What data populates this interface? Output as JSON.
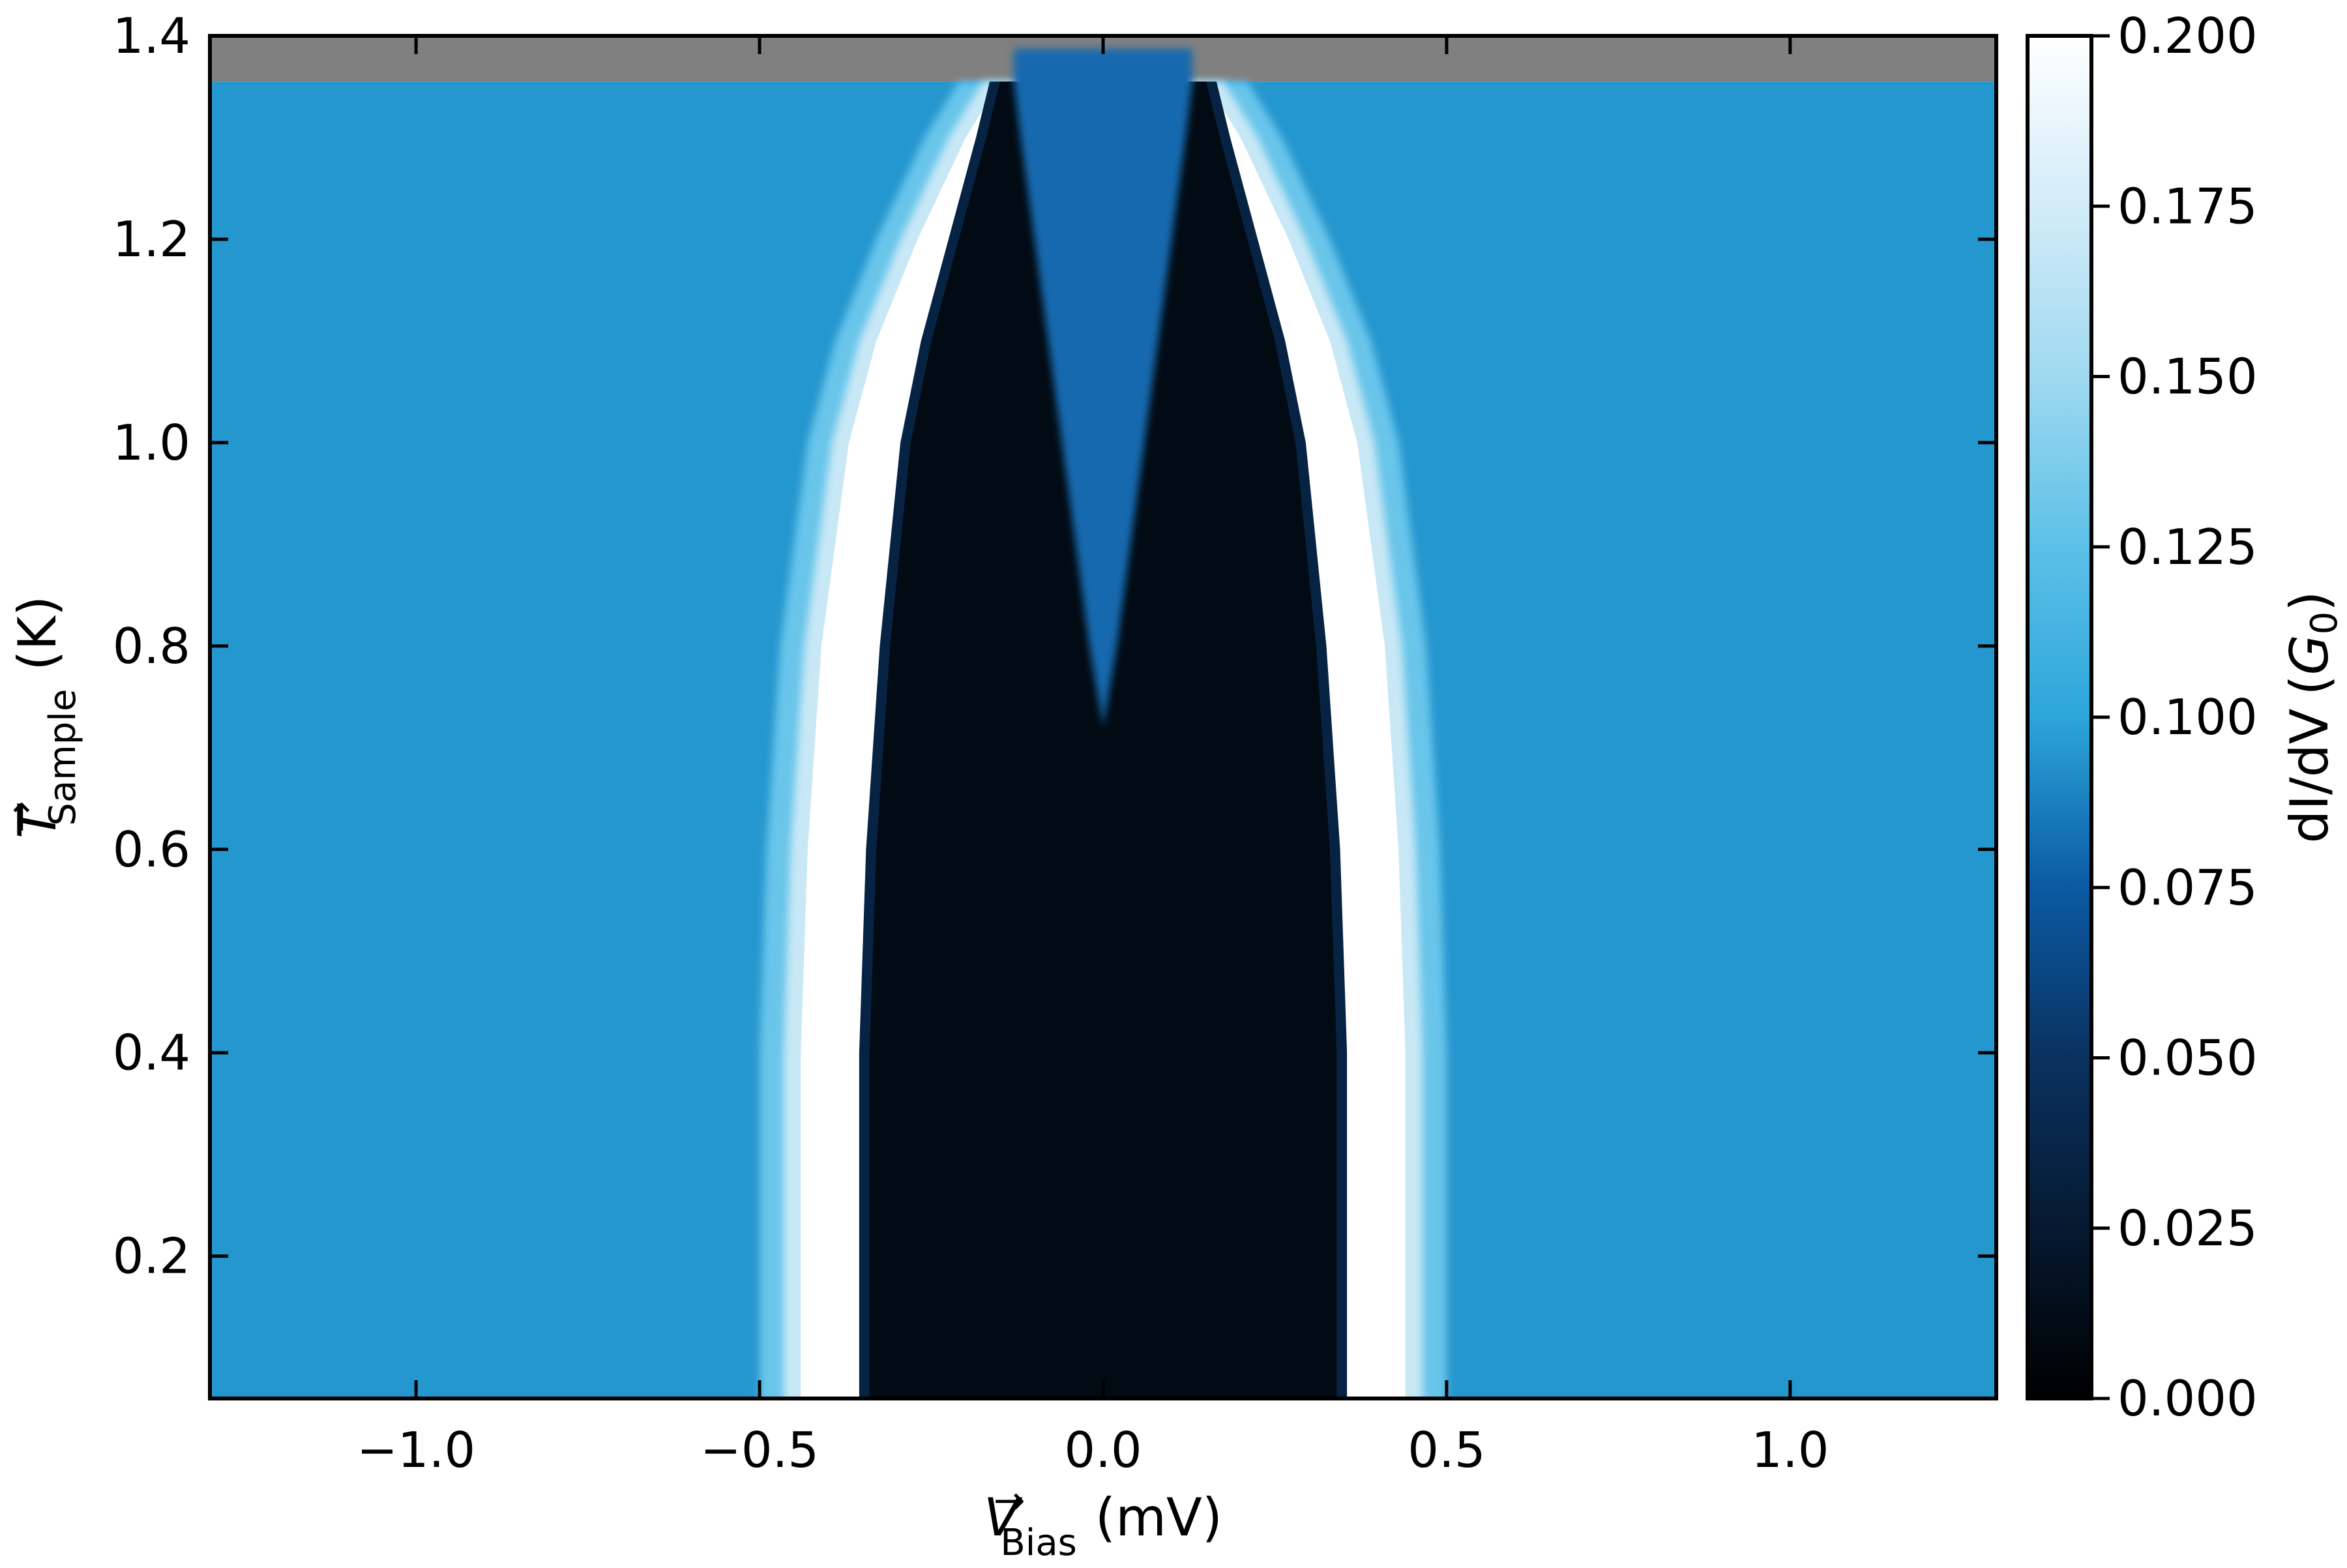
{
  "chart_data": {
    "type": "heatmap",
    "title": "",
    "xlabel": {
      "symbol": "V",
      "arrow": "→",
      "subscript": "Bias",
      "unit": "(mV)"
    },
    "ylabel": {
      "symbol": "T",
      "arrow": "→",
      "subscript": "Sample",
      "unit": "(K)"
    },
    "colorbar_label": {
      "prefix": "dI/dV",
      "unit_open": "(",
      "unit_symbol": "G",
      "unit_subscript": "0",
      "unit_close": ")"
    },
    "xlim": [
      -1.3,
      1.3
    ],
    "ylim": [
      0.06,
      1.4
    ],
    "data_ymax": 1.355,
    "missing_data_color": "#808080",
    "clim": [
      0.0,
      0.2
    ],
    "colormap": "black-blue-white",
    "x_ticks": [
      {
        "value": -1.0,
        "label": "−1.0"
      },
      {
        "value": -0.5,
        "label": "−0.5"
      },
      {
        "value": 0.0,
        "label": "0.0"
      },
      {
        "value": 0.5,
        "label": "0.5"
      },
      {
        "value": 1.0,
        "label": "1.0"
      }
    ],
    "y_ticks": [
      {
        "value": 0.2,
        "label": "0.2"
      },
      {
        "value": 0.4,
        "label": "0.4"
      },
      {
        "value": 0.6,
        "label": "0.6"
      },
      {
        "value": 0.8,
        "label": "0.8"
      },
      {
        "value": 1.0,
        "label": "1.0"
      },
      {
        "value": 1.2,
        "label": "1.2"
      },
      {
        "value": 1.4,
        "label": "1.4"
      }
    ],
    "colorbar_ticks": [
      {
        "value": 0.0,
        "label": "0.000"
      },
      {
        "value": 0.025,
        "label": "0.025"
      },
      {
        "value": 0.05,
        "label": "0.050"
      },
      {
        "value": 0.075,
        "label": "0.075"
      },
      {
        "value": 0.1,
        "label": "0.100"
      },
      {
        "value": 0.125,
        "label": "0.125"
      },
      {
        "value": 0.15,
        "label": "0.150"
      },
      {
        "value": 0.175,
        "label": "0.175"
      },
      {
        "value": 0.2,
        "label": "0.200"
      }
    ],
    "series": [
      {
        "feature": "coherence-peak-edge",
        "points": [
          {
            "T": 0.06,
            "V": 0.44
          },
          {
            "T": 0.4,
            "V": 0.44
          },
          {
            "T": 0.6,
            "V": 0.43
          },
          {
            "T": 0.8,
            "V": 0.41
          },
          {
            "T": 1.0,
            "V": 0.37
          },
          {
            "T": 1.1,
            "V": 0.33
          },
          {
            "T": 1.2,
            "V": 0.27
          },
          {
            "T": 1.3,
            "V": 0.2
          },
          {
            "T": 1.355,
            "V": 0.15
          }
        ]
      },
      {
        "feature": "gap-edge",
        "points": [
          {
            "T": 0.06,
            "V": 0.34
          },
          {
            "T": 0.4,
            "V": 0.34
          },
          {
            "T": 0.6,
            "V": 0.33
          },
          {
            "T": 0.8,
            "V": 0.31
          },
          {
            "T": 1.0,
            "V": 0.28
          },
          {
            "T": 1.1,
            "V": 0.25
          },
          {
            "T": 1.2,
            "V": 0.21
          },
          {
            "T": 1.3,
            "V": 0.17
          },
          {
            "T": 1.355,
            "V": 0.15
          }
        ]
      },
      {
        "feature": "zero-bias-peak-halfwidth",
        "points": [
          {
            "T": 0.06,
            "V": 0.0
          },
          {
            "T": 0.7,
            "V": 0.0
          },
          {
            "T": 0.8,
            "V": 0.02
          },
          {
            "T": 0.9,
            "V": 0.04
          },
          {
            "T": 1.0,
            "V": 0.06
          },
          {
            "T": 1.1,
            "V": 0.08
          },
          {
            "T": 1.2,
            "V": 0.1
          },
          {
            "T": 1.3,
            "V": 0.12
          },
          {
            "T": 1.355,
            "V": 0.13
          }
        ]
      }
    ],
    "conductance_levels": {
      "background": 0.095,
      "outer_background": 0.088,
      "coherence_peak": 0.2,
      "gap_floor": 0.01,
      "zero_bias_peak": 0.08
    }
  }
}
